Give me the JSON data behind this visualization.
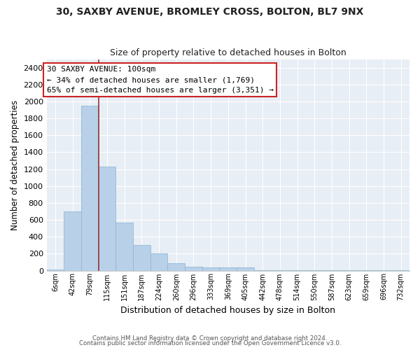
{
  "title": "30, SAXBY AVENUE, BROMLEY CROSS, BOLTON, BL7 9NX",
  "subtitle": "Size of property relative to detached houses in Bolton",
  "xlabel": "Distribution of detached houses by size in Bolton",
  "ylabel": "Number of detached properties",
  "bar_color": "#b8d0e8",
  "bar_edge_color": "#8ab4d4",
  "bin_labels": [
    "6sqm",
    "42sqm",
    "79sqm",
    "115sqm",
    "151sqm",
    "187sqm",
    "224sqm",
    "260sqm",
    "296sqm",
    "333sqm",
    "369sqm",
    "405sqm",
    "442sqm",
    "478sqm",
    "514sqm",
    "550sqm",
    "587sqm",
    "623sqm",
    "659sqm",
    "696sqm",
    "732sqm"
  ],
  "bar_heights": [
    15,
    700,
    1950,
    1230,
    570,
    305,
    200,
    85,
    45,
    38,
    35,
    35,
    5,
    5,
    5,
    5,
    5,
    5,
    5,
    5,
    5
  ],
  "ylim": [
    0,
    2500
  ],
  "yticks": [
    0,
    200,
    400,
    600,
    800,
    1000,
    1200,
    1400,
    1600,
    1800,
    2000,
    2200,
    2400
  ],
  "annotation_text": "30 SAXBY AVENUE: 100sqm\n← 34% of detached houses are smaller (1,769)\n65% of semi-detached houses are larger (3,351) →",
  "red_line_bar_index": 2,
  "plot_bg_color": "#e8eef5",
  "grid_color": "#ffffff",
  "fig_bg_color": "#ffffff",
  "footer_line1": "Contains HM Land Registry data © Crown copyright and database right 2024.",
  "footer_line2": "Contains public sector information licensed under the Open Government Licence v3.0."
}
